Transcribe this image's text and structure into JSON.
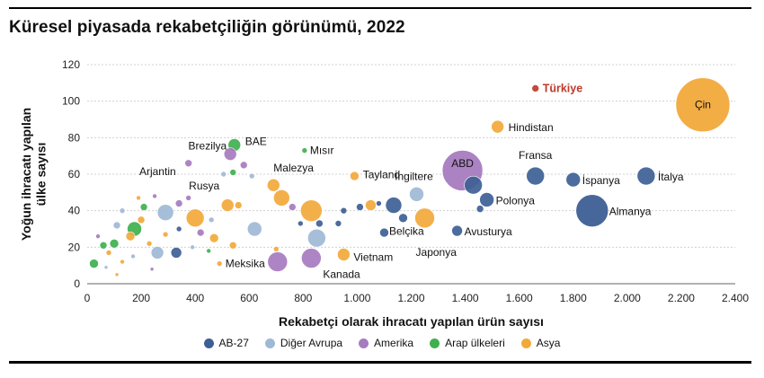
{
  "title": "Küresel piyasada rekabetçiliğin görünümü, 2022",
  "colors": {
    "AB-27": "#3d5f96",
    "Diğer Avrupa": "#9fb8d6",
    "Amerika": "#a77bbf",
    "Arap ülkeleri": "#3fb04e",
    "Asya": "#f2a93b",
    "Türkiye": "#c0392b"
  },
  "legend": [
    {
      "name": "AB-27",
      "color_key": "AB-27"
    },
    {
      "name": "Diğer Avrupa",
      "color_key": "Diğer Avrupa"
    },
    {
      "name": "Amerika",
      "color_key": "Amerika"
    },
    {
      "name": "Arap ülkeleri",
      "color_key": "Arap ülkeleri"
    },
    {
      "name": "Asya",
      "color_key": "Asya"
    }
  ],
  "chart_data": {
    "type": "scatter",
    "title": "Küresel piyasada rekabetçiliğin görünümü, 2022",
    "xlabel": "Rekabetçi olarak ihracatı yapılan ürün sayısı",
    "ylabel": "Yoğun ihracatı yapılan ülke sayısı",
    "xlim": [
      0,
      2400
    ],
    "ylim": [
      0,
      120
    ],
    "xticks": [
      "0",
      "200",
      "400",
      "600",
      "800",
      "1.000",
      "1.200",
      "1.400",
      "1.600",
      "1.800",
      "2.000",
      "2.200",
      "2.400"
    ],
    "yticks": [
      "0",
      "20",
      "40",
      "60",
      "80",
      "100",
      "120"
    ],
    "grid": "horizontal",
    "legend_position": "bottom",
    "points": [
      {
        "label": "Çin",
        "x": 2280,
        "y": 98,
        "size": 60,
        "group": "Asya"
      },
      {
        "label": "Türkiye",
        "x": 1660,
        "y": 107,
        "size": 8,
        "group": "Türkiye"
      },
      {
        "label": "Hindistan",
        "x": 1520,
        "y": 86,
        "size": 14,
        "group": "Asya"
      },
      {
        "label": "ABD",
        "x": 1390,
        "y": 62,
        "size": 45,
        "group": "Amerika"
      },
      {
        "label": "Fransa",
        "x": 1660,
        "y": 59,
        "size": 20,
        "group": "AB-27"
      },
      {
        "label": "İspanya",
        "x": 1800,
        "y": 57,
        "size": 16,
        "group": "AB-27"
      },
      {
        "label": "İtalya",
        "x": 2070,
        "y": 59,
        "size": 20,
        "group": "AB-27"
      },
      {
        "label": "Almanya",
        "x": 1870,
        "y": 40,
        "size": 36,
        "group": "AB-27"
      },
      {
        "label": "Polonya",
        "x": 1480,
        "y": 46,
        "size": 16,
        "group": "AB-27"
      },
      {
        "label": "Avusturya",
        "x": 1370,
        "y": 29,
        "size": 12,
        "group": "AB-27"
      },
      {
        "label": "İngiltere",
        "x": 1220,
        "y": 49,
        "size": 16,
        "group": "Diğer Avrupa"
      },
      {
        "label": "Belçika",
        "x": 1135,
        "y": 43,
        "size": 18,
        "group": "AB-27"
      },
      {
        "label": "Japonya",
        "x": 1250,
        "y": 36,
        "size": 22,
        "group": "Asya"
      },
      {
        "label": "Tayland",
        "x": 1050,
        "y": 43,
        "size": 12,
        "group": "Asya"
      },
      {
        "label": "Vietnam",
        "x": 950,
        "y": 16,
        "size": 14,
        "group": "Asya"
      },
      {
        "label": "Kanada",
        "x": 830,
        "y": 14,
        "size": 22,
        "group": "Amerika"
      },
      {
        "label": "Meksika",
        "x": 705,
        "y": 12,
        "size": 22,
        "group": "Amerika"
      },
      {
        "label": "Malezya",
        "x": 690,
        "y": 54,
        "size": 14,
        "group": "Asya"
      },
      {
        "label": "BAE",
        "x": 545,
        "y": 76,
        "size": 14,
        "group": "Arap ülkeleri"
      },
      {
        "label": "Brezilya",
        "x": 530,
        "y": 71,
        "size": 14,
        "group": "Amerika"
      },
      {
        "label": "Mısır",
        "x": 805,
        "y": 73,
        "size": 6,
        "group": "Arap ülkeleri"
      },
      {
        "label": "Arjantin",
        "x": 375,
        "y": 66,
        "size": 8,
        "group": "Amerika"
      },
      {
        "label": "Rusya",
        "x": 400,
        "y": 36,
        "size": 20,
        "group": "Asya"
      },
      {
        "label": "",
        "x": 830,
        "y": 40,
        "size": 24,
        "group": "Asya"
      },
      {
        "label": "",
        "x": 720,
        "y": 47,
        "size": 18,
        "group": "Asya"
      },
      {
        "label": "",
        "x": 520,
        "y": 43,
        "size": 14,
        "group": "Asya"
      },
      {
        "label": "",
        "x": 850,
        "y": 25,
        "size": 20,
        "group": "Diğer Avrupa"
      },
      {
        "label": "",
        "x": 620,
        "y": 30,
        "size": 16,
        "group": "Diğer Avrupa"
      },
      {
        "label": "",
        "x": 290,
        "y": 39,
        "size": 18,
        "group": "Diğer Avrupa"
      },
      {
        "label": "",
        "x": 260,
        "y": 17,
        "size": 14,
        "group": "Diğer Avrupa"
      },
      {
        "label": "",
        "x": 330,
        "y": 17,
        "size": 12,
        "group": "AB-27"
      },
      {
        "label": "",
        "x": 1170,
        "y": 36,
        "size": 10,
        "group": "AB-27"
      },
      {
        "label": "",
        "x": 1100,
        "y": 28,
        "size": 10,
        "group": "AB-27"
      },
      {
        "label": "",
        "x": 1430,
        "y": 54,
        "size": 20,
        "group": "AB-27"
      },
      {
        "label": "",
        "x": 1455,
        "y": 41,
        "size": 8,
        "group": "AB-27"
      },
      {
        "label": "",
        "x": 1010,
        "y": 42,
        "size": 8,
        "group": "AB-27"
      },
      {
        "label": "",
        "x": 950,
        "y": 40,
        "size": 7,
        "group": "AB-27"
      },
      {
        "label": "",
        "x": 860,
        "y": 33,
        "size": 8,
        "group": "AB-27"
      },
      {
        "label": "",
        "x": 790,
        "y": 33,
        "size": 6,
        "group": "AB-27"
      },
      {
        "label": "",
        "x": 930,
        "y": 33,
        "size": 7,
        "group": "AB-27"
      },
      {
        "label": "",
        "x": 1080,
        "y": 44,
        "size": 6,
        "group": "AB-27"
      },
      {
        "label": "",
        "x": 990,
        "y": 59,
        "size": 10,
        "group": "Asya"
      },
      {
        "label": "",
        "x": 470,
        "y": 25,
        "size": 10,
        "group": "Asya"
      },
      {
        "label": "",
        "x": 540,
        "y": 21,
        "size": 8,
        "group": "Asya"
      },
      {
        "label": "",
        "x": 560,
        "y": 43,
        "size": 8,
        "group": "Asya"
      },
      {
        "label": "",
        "x": 200,
        "y": 35,
        "size": 8,
        "group": "Asya"
      },
      {
        "label": "",
        "x": 160,
        "y": 26,
        "size": 10,
        "group": "Asya"
      },
      {
        "label": "",
        "x": 700,
        "y": 19,
        "size": 6,
        "group": "Asya"
      },
      {
        "label": "",
        "x": 490,
        "y": 11,
        "size": 6,
        "group": "Asya"
      },
      {
        "label": "",
        "x": 175,
        "y": 30,
        "size": 16,
        "group": "Arap ülkeleri"
      },
      {
        "label": "",
        "x": 100,
        "y": 22,
        "size": 10,
        "group": "Arap ülkeleri"
      },
      {
        "label": "",
        "x": 60,
        "y": 21,
        "size": 8,
        "group": "Arap ülkeleri"
      },
      {
        "label": "",
        "x": 25,
        "y": 11,
        "size": 10,
        "group": "Arap ülkeleri"
      },
      {
        "label": "",
        "x": 210,
        "y": 42,
        "size": 8,
        "group": "Arap ülkeleri"
      },
      {
        "label": "",
        "x": 540,
        "y": 61,
        "size": 7,
        "group": "Arap ülkeleri"
      },
      {
        "label": "",
        "x": 580,
        "y": 65,
        "size": 8,
        "group": "Amerika"
      },
      {
        "label": "",
        "x": 340,
        "y": 44,
        "size": 8,
        "group": "Amerika"
      },
      {
        "label": "",
        "x": 375,
        "y": 47,
        "size": 6,
        "group": "Amerika"
      },
      {
        "label": "",
        "x": 420,
        "y": 28,
        "size": 8,
        "group": "Amerika"
      },
      {
        "label": "",
        "x": 760,
        "y": 42,
        "size": 8,
        "group": "Amerika"
      },
      {
        "label": "",
        "x": 130,
        "y": 40,
        "size": 6,
        "group": "Diğer Avrupa"
      },
      {
        "label": "",
        "x": 110,
        "y": 32,
        "size": 8,
        "group": "Diğer Avrupa"
      },
      {
        "label": "",
        "x": 505,
        "y": 60,
        "size": 6,
        "group": "Diğer Avrupa"
      },
      {
        "label": "",
        "x": 610,
        "y": 59,
        "size": 6,
        "group": "Diğer Avrupa"
      },
      {
        "label": "",
        "x": 460,
        "y": 35,
        "size": 6,
        "group": "Diğer Avrupa"
      },
      {
        "label": "",
        "x": 80,
        "y": 17,
        "size": 6,
        "group": "Asya"
      },
      {
        "label": "",
        "x": 130,
        "y": 12,
        "size": 5,
        "group": "Asya"
      },
      {
        "label": "",
        "x": 230,
        "y": 22,
        "size": 6,
        "group": "Asya"
      },
      {
        "label": "",
        "x": 290,
        "y": 27,
        "size": 6,
        "group": "Asya"
      },
      {
        "label": "",
        "x": 40,
        "y": 26,
        "size": 5,
        "group": "Amerika"
      },
      {
        "label": "",
        "x": 70,
        "y": 9,
        "size": 4,
        "group": "Diğer Avrupa"
      },
      {
        "label": "",
        "x": 170,
        "y": 15,
        "size": 5,
        "group": "Diğer Avrupa"
      },
      {
        "label": "",
        "x": 240,
        "y": 8,
        "size": 4,
        "group": "Amerika"
      },
      {
        "label": "",
        "x": 110,
        "y": 5,
        "size": 4,
        "group": "Asya"
      },
      {
        "label": "",
        "x": 340,
        "y": 30,
        "size": 6,
        "group": "AB-27"
      },
      {
        "label": "",
        "x": 390,
        "y": 20,
        "size": 5,
        "group": "Diğer Avrupa"
      },
      {
        "label": "",
        "x": 450,
        "y": 18,
        "size": 5,
        "group": "Arap ülkeleri"
      },
      {
        "label": "",
        "x": 250,
        "y": 48,
        "size": 5,
        "group": "Amerika"
      },
      {
        "label": "",
        "x": 190,
        "y": 47,
        "size": 5,
        "group": "Asya"
      }
    ]
  }
}
